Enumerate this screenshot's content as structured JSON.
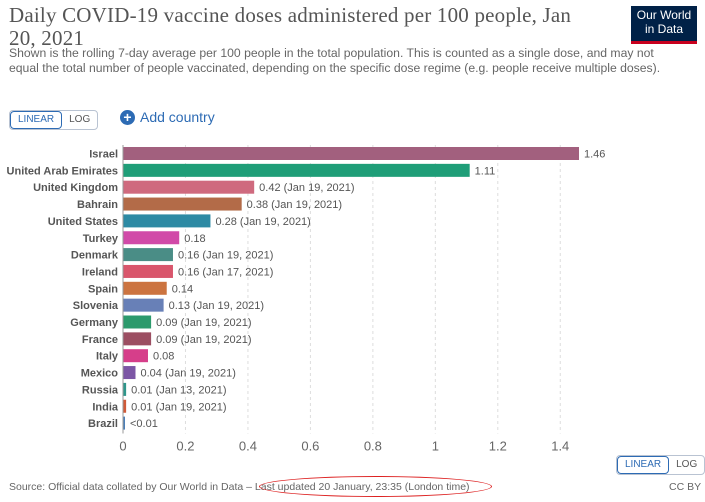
{
  "header": {
    "title": "Daily COVID-19 vaccine doses administered per 100 people, Jan 20, 2021",
    "subtitle": "Shown is the rolling 7-day average per 100 people in the total population. This is counted as a single dose, and may not equal the total number of people vaccinated, depending on the specific dose regime (e.g. people receive multiple doses).",
    "logo_line1": "Our World",
    "logo_line2": "in Data"
  },
  "controls": {
    "linear_label": "LINEAR",
    "log_label": "LOG",
    "add_country_label": "Add country"
  },
  "footer": {
    "source": "Source: Official data collated by Our World in Data – ",
    "updated": "Last updated 20 January, 23:35 (London time)",
    "license": "CC BY"
  },
  "colors": {
    "accent": "#2d6bb4",
    "annotation_ring": "#dd2222"
  },
  "chart_data": {
    "type": "bar",
    "orientation": "horizontal",
    "xlim": [
      0,
      1.46
    ],
    "x_ticks": [
      "0",
      "0.2",
      "0.4",
      "0.6",
      "0.8",
      "1",
      "1.2",
      "1.4"
    ],
    "x_tick_values": [
      0,
      0.2,
      0.4,
      0.6,
      0.8,
      1,
      1.2,
      1.4
    ],
    "grid": true,
    "categories": [
      "Israel",
      "United Arab Emirates",
      "United Kingdom",
      "Bahrain",
      "United States",
      "Turkey",
      "Denmark",
      "Ireland",
      "Spain",
      "Slovenia",
      "Germany",
      "France",
      "Italy",
      "Mexico",
      "Russia",
      "India",
      "Brazil"
    ],
    "values": [
      1.46,
      1.11,
      0.42,
      0.38,
      0.28,
      0.18,
      0.16,
      0.16,
      0.14,
      0.13,
      0.09,
      0.09,
      0.08,
      0.04,
      0.01,
      0.01,
      0.004
    ],
    "labels": [
      "1.46",
      "1.11",
      "0.42 (Jan 19, 2021)",
      "0.38 (Jan 19, 2021)",
      "0.28 (Jan 19, 2021)",
      "0.18",
      "0.16 (Jan 19, 2021)",
      "0.16 (Jan 17, 2021)",
      "0.14",
      "0.13 (Jan 19, 2021)",
      "0.09 (Jan 19, 2021)",
      "0.09 (Jan 19, 2021)",
      "0.08",
      "0.04 (Jan 19, 2021)",
      "0.01 (Jan 13, 2021)",
      "0.01 (Jan 19, 2021)",
      "<0.01"
    ],
    "colors": [
      "#a2607e",
      "#1f9e78",
      "#cf6a7e",
      "#b36b48",
      "#2d8aa4",
      "#d14aa8",
      "#4a8d86",
      "#d9566c",
      "#cc7440",
      "#6880b7",
      "#2c9a6c",
      "#9c4e62",
      "#d63e8a",
      "#7c56a5",
      "#2e968a",
      "#d05a38",
      "#4b7fb8"
    ]
  }
}
